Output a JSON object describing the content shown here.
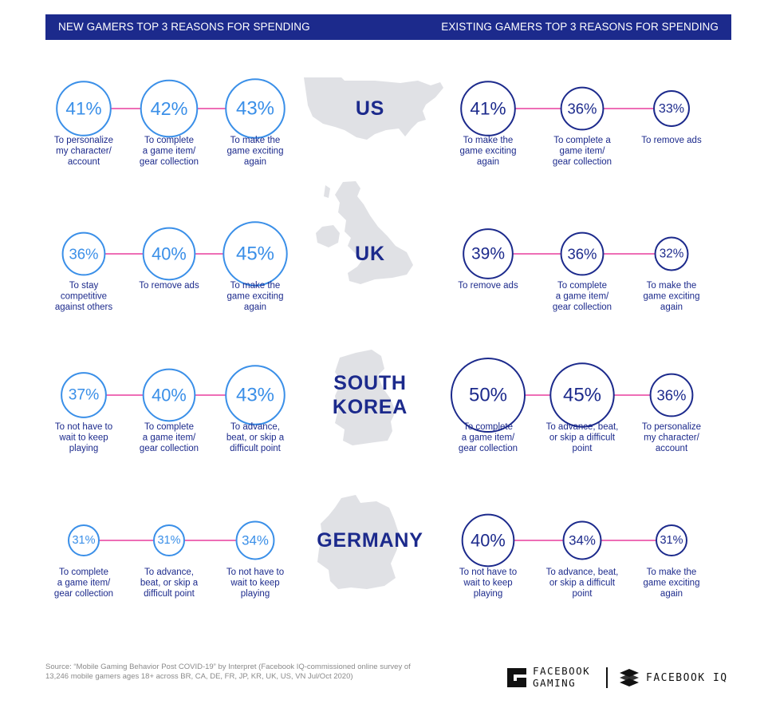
{
  "header": {
    "left_title": "NEW GAMERS TOP 3 REASONS FOR SPENDING",
    "right_title": "EXISTING GAMERS TOP 3 REASONS FOR SPENDING"
  },
  "colors": {
    "navy": "#1c2a8c",
    "new_gamers_circle": "#3a8fe8",
    "existing_gamers_circle": "#1c2a8c",
    "connector": "#e83e9e",
    "map_gray": "#e0e1e5"
  },
  "countries": [
    {
      "name_lines": [
        "US"
      ],
      "new_gamers": [
        {
          "value": 41,
          "label": "41%",
          "reason_lines": [
            "To personalize",
            "my character/",
            "account"
          ]
        },
        {
          "value": 42,
          "label": "42%",
          "reason_lines": [
            "To complete",
            "a game item/",
            "gear collection"
          ]
        },
        {
          "value": 43,
          "label": "43%",
          "reason_lines": [
            "To make the",
            "game exciting",
            "again"
          ]
        }
      ],
      "existing_gamers": [
        {
          "value": 41,
          "label": "41%",
          "reason_lines": [
            "To make the",
            "game exciting",
            "again"
          ]
        },
        {
          "value": 36,
          "label": "36%",
          "reason_lines": [
            "To complete a",
            "game item/",
            "gear collection"
          ]
        },
        {
          "value": 33,
          "label": "33%",
          "reason_lines": [
            "To remove ads"
          ]
        }
      ]
    },
    {
      "name_lines": [
        "UK"
      ],
      "new_gamers": [
        {
          "value": 36,
          "label": "36%",
          "reason_lines": [
            "To stay",
            "competitive",
            "against others"
          ]
        },
        {
          "value": 40,
          "label": "40%",
          "reason_lines": [
            "To remove ads"
          ]
        },
        {
          "value": 45,
          "label": "45%",
          "reason_lines": [
            "To make the",
            "game exciting",
            "again"
          ]
        }
      ],
      "existing_gamers": [
        {
          "value": 39,
          "label": "39%",
          "reason_lines": [
            "To remove ads"
          ]
        },
        {
          "value": 36,
          "label": "36%",
          "reason_lines": [
            "To complete",
            "a game item/",
            "gear collection"
          ]
        },
        {
          "value": 32,
          "label": "32%",
          "reason_lines": [
            "To make the",
            "game exciting",
            "again"
          ]
        }
      ]
    },
    {
      "name_lines": [
        "SOUTH",
        "KOREA"
      ],
      "new_gamers": [
        {
          "value": 37,
          "label": "37%",
          "reason_lines": [
            "To not have to",
            "wait to keep",
            "playing"
          ]
        },
        {
          "value": 40,
          "label": "40%",
          "reason_lines": [
            "To complete",
            "a game item/",
            "gear collection"
          ]
        },
        {
          "value": 43,
          "label": "43%",
          "reason_lines": [
            "To advance,",
            "beat, or skip a",
            "difficult point"
          ]
        }
      ],
      "existing_gamers": [
        {
          "value": 50,
          "label": "50%",
          "reason_lines": [
            "To complete",
            "a game item/",
            "gear collection"
          ]
        },
        {
          "value": 45,
          "label": "45%",
          "reason_lines": [
            "To advance, beat,",
            "or skip a difficult",
            "point"
          ]
        },
        {
          "value": 36,
          "label": "36%",
          "reason_lines": [
            "To personalize",
            "my character/",
            "account"
          ]
        }
      ]
    },
    {
      "name_lines": [
        "GERMANY"
      ],
      "new_gamers": [
        {
          "value": 31,
          "label": "31%",
          "reason_lines": [
            "To complete",
            "a game item/",
            "gear collection"
          ]
        },
        {
          "value": 31,
          "label": "31%",
          "reason_lines": [
            "To advance,",
            "beat, or skip a",
            "difficult point"
          ]
        },
        {
          "value": 34,
          "label": "34%",
          "reason_lines": [
            "To not have to",
            "wait to keep",
            "playing"
          ]
        }
      ],
      "existing_gamers": [
        {
          "value": 40,
          "label": "40%",
          "reason_lines": [
            "To not have to",
            "wait to keep",
            "playing"
          ]
        },
        {
          "value": 34,
          "label": "34%",
          "reason_lines": [
            "To advance, beat,",
            "or skip a difficult",
            "point"
          ]
        },
        {
          "value": 31,
          "label": "31%",
          "reason_lines": [
            "To make the",
            "game exciting",
            "again"
          ]
        }
      ]
    }
  ],
  "footer": {
    "source_line1": "Source: “Mobile Gaming Behavior Post COVID-19” by Interpret (Facebook IQ-commissioned online survey of",
    "source_line2": "13,246 mobile gamers ages 18+ across BR, CA, DE, FR, JP, KR, UK, US, VN Jul/Oct 2020)",
    "logo1_line1": "FACEBOOK",
    "logo1_line2": "GAMING",
    "logo2": "FACEBOOK IQ"
  }
}
